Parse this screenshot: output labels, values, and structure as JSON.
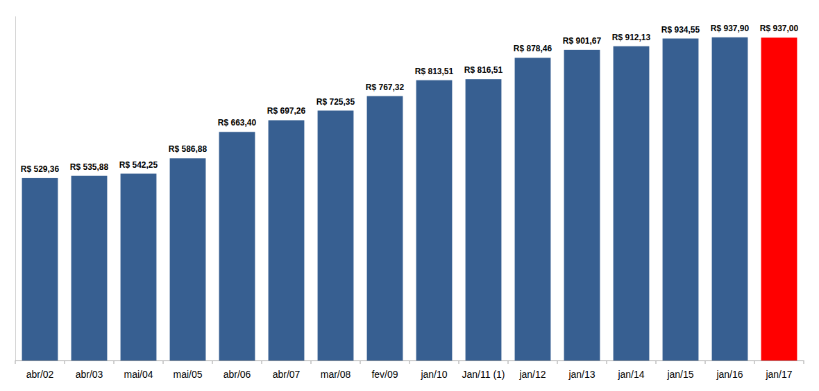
{
  "chart_data": {
    "type": "bar",
    "categories": [
      "abr/02",
      "abr/03",
      "mai/04",
      "mai/05",
      "abr/06",
      "abr/07",
      "mar/08",
      "fev/09",
      "jan/10",
      "Jan/11 (1)",
      "jan/12",
      "jan/13",
      "jan/14",
      "jan/15",
      "jan/16",
      "jan/17"
    ],
    "values": [
      529.36,
      535.88,
      542.25,
      586.88,
      663.4,
      697.26,
      725.35,
      767.32,
      813.51,
      816.51,
      878.46,
      901.67,
      912.13,
      934.55,
      937.9,
      937.0
    ],
    "value_labels": [
      "R$ 529,36",
      "R$ 535,88",
      "R$ 542,25",
      "R$ 586,88",
      "R$ 663,40",
      "R$ 697,26",
      "R$ 725,35",
      "R$ 767,32",
      "R$ 813,51",
      "R$ 816,51",
      "R$ 878,46",
      "R$ 901,67",
      "R$ 912,13",
      "R$ 934,55",
      "R$ 937,90",
      "R$ 937,00"
    ],
    "colors": [
      "#375f91",
      "#375f91",
      "#375f91",
      "#375f91",
      "#375f91",
      "#375f91",
      "#375f91",
      "#375f91",
      "#375f91",
      "#375f91",
      "#375f91",
      "#375f91",
      "#375f91",
      "#375f91",
      "#375f91",
      "#ff0000"
    ],
    "ylim": [
      0,
      1000
    ],
    "yticks": [],
    "grid": false,
    "data_labels": true,
    "tick_labels": "x"
  }
}
